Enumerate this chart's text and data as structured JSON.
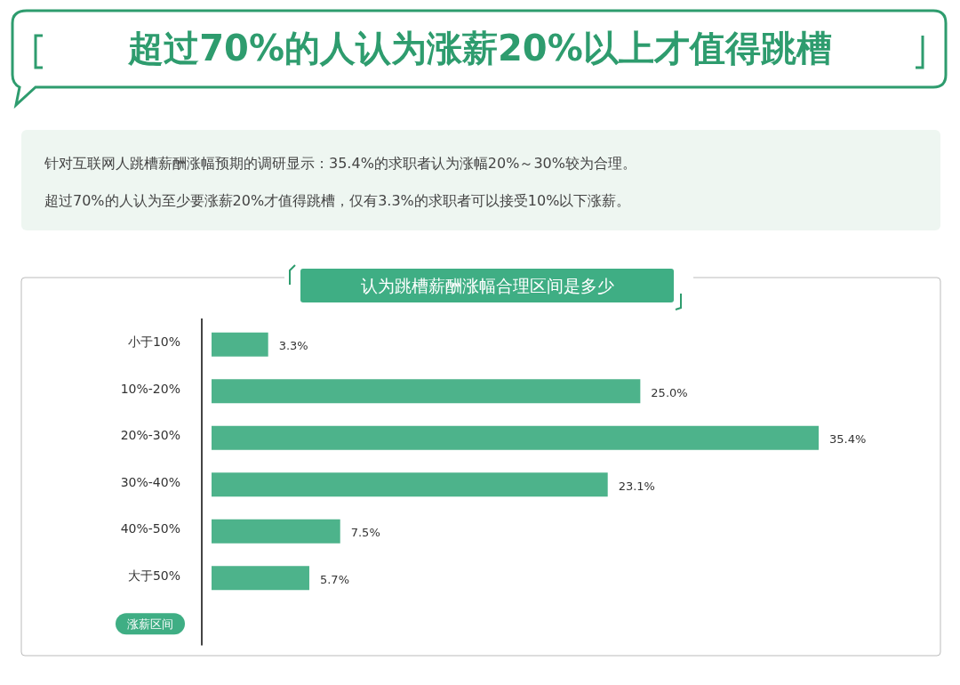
{
  "chart_data": {
    "type": "bar",
    "orientation": "horizontal",
    "title": "超过70%的人认为涨薪20%以上才值得跳槽",
    "subtitle": "认为跳槽薪酬涨幅合理区间是多少",
    "annotations": [
      "针对互联网人跳槽薪酬涨幅预期的调研显示：35.4%的求职者认为涨幅20%～30%较为合理。",
      "超过70%的人认为至少要涨薪20%才值得跳槽，仅有3.3%的求职者可以接受10%以下涨薪。"
    ],
    "ylabel": "涨薪区间",
    "categories": [
      "小于10%",
      "10%-20%",
      "20%-30%",
      "30%-40%",
      "40%-50%",
      "大于50%"
    ],
    "values": [
      3.3,
      25.0,
      35.4,
      23.1,
      7.5,
      5.7
    ],
    "value_labels": [
      "3.3%",
      "25.0%",
      "35.4%",
      "23.1%",
      "7.5%",
      "5.7%"
    ],
    "color": "#4db38b"
  }
}
